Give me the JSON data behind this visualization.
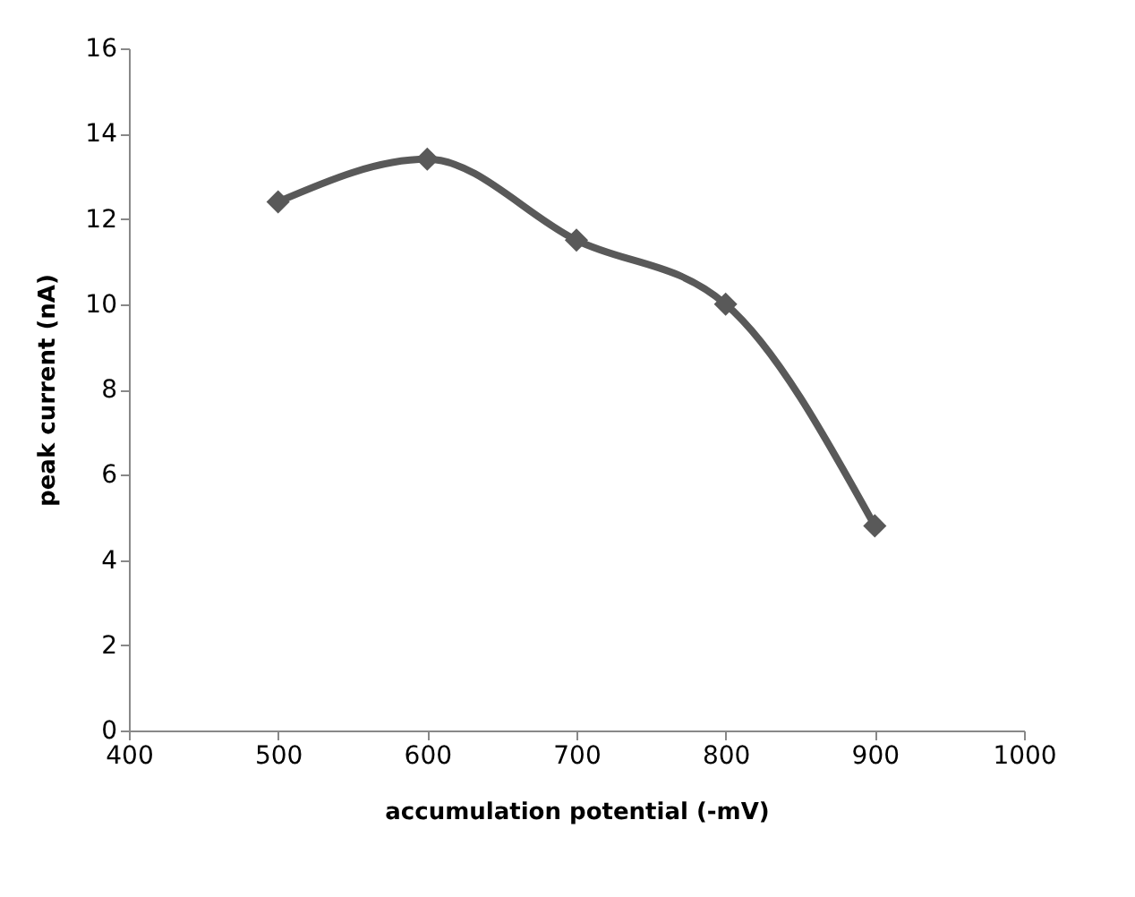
{
  "chart_data": {
    "type": "line",
    "xlabel": "accumulation potential (-mV)",
    "ylabel": "peak current (nA)",
    "x": [
      500,
      600,
      700,
      800,
      900
    ],
    "series": [
      {
        "color": "#595959",
        "values": [
          12.4,
          13.4,
          11.5,
          10.0,
          4.8
        ]
      }
    ],
    "xlim": [
      400,
      1000
    ],
    "xticks": [
      400,
      500,
      600,
      700,
      800,
      900,
      1000
    ],
    "ylim": [
      0,
      16
    ],
    "yticks": [
      0,
      2,
      4,
      6,
      8,
      10,
      12,
      14,
      16
    ],
    "grid": false,
    "legend": false,
    "marker": "diamond",
    "line_style": "solid"
  }
}
